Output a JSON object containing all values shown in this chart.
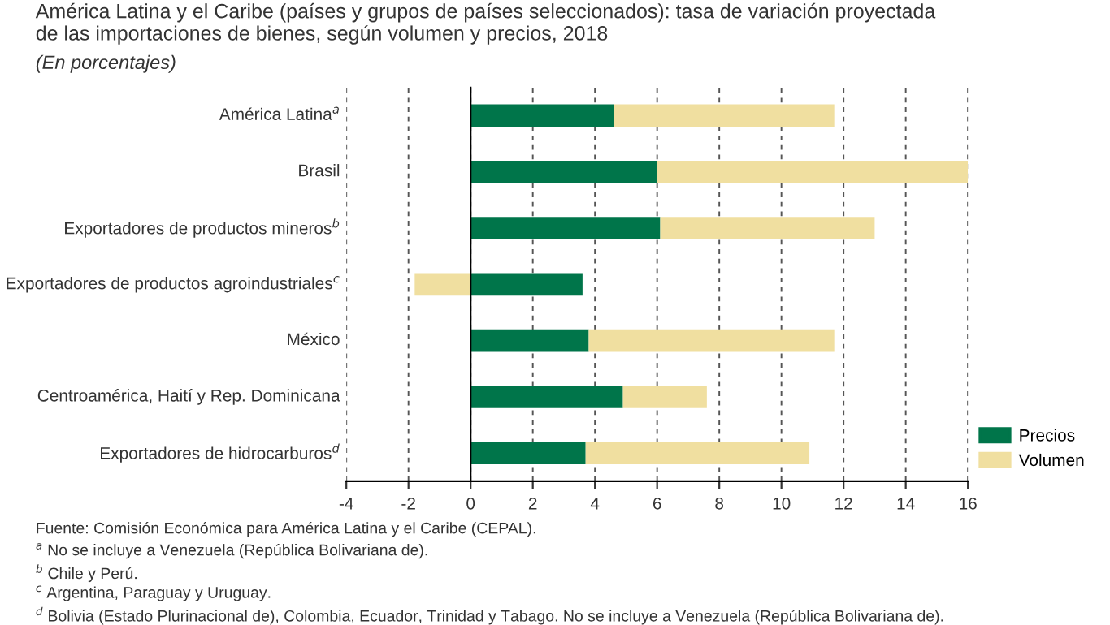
{
  "chart_data": {
    "type": "bar",
    "orientation": "horizontal",
    "stacked": true,
    "title": "América Latina y el Caribe (países y grupos de países seleccionados): tasa de variación proyectada\nde las importaciones de bienes, según volumen y precios, 2018",
    "subtitle": "(En porcentajes)",
    "categories": [
      "América Latina$^{a}$",
      "Brasil",
      "Exportadores de productos mineros$^{b}$",
      "Exportadores de productos agroindustriales$^{c}$",
      "México",
      "Centroamérica, Haití y Rep. Dominicana",
      "Exportadores de hidrocarburos$^{d}$"
    ],
    "series": [
      {
        "name": "Precios",
        "color": "#00754a",
        "values": [
          4.6,
          6.0,
          6.1,
          3.6,
          3.8,
          4.9,
          3.7
        ]
      },
      {
        "name": "Volumen",
        "color": "#f0dfa0",
        "values": [
          7.1,
          10.0,
          6.9,
          -1.8,
          7.9,
          2.7,
          7.2
        ]
      }
    ],
    "xlim": [
      -4,
      16
    ],
    "xticks": [
      -4,
      -2,
      0,
      2,
      4,
      6,
      8,
      10,
      12,
      14,
      16
    ],
    "grid": "x",
    "legend": "bottom right",
    "annotations": [
      "Fuente: Comisión Económica para América Latina y el Caribe (CEPAL).",
      "$^{a}$ No se incluye a Venezuela (República Bolivariana de).",
      "$^{b}$ Chile y Perú.",
      "$^{c}$ Argentina, Paraguay y Uruguay.",
      "$^{d}$ Bolivia (Estado Plurinacional de), Colombia, Ecuador, Trinidad y Tabago. No se incluye a Venezuela (República Bolivariana de)."
    ]
  }
}
